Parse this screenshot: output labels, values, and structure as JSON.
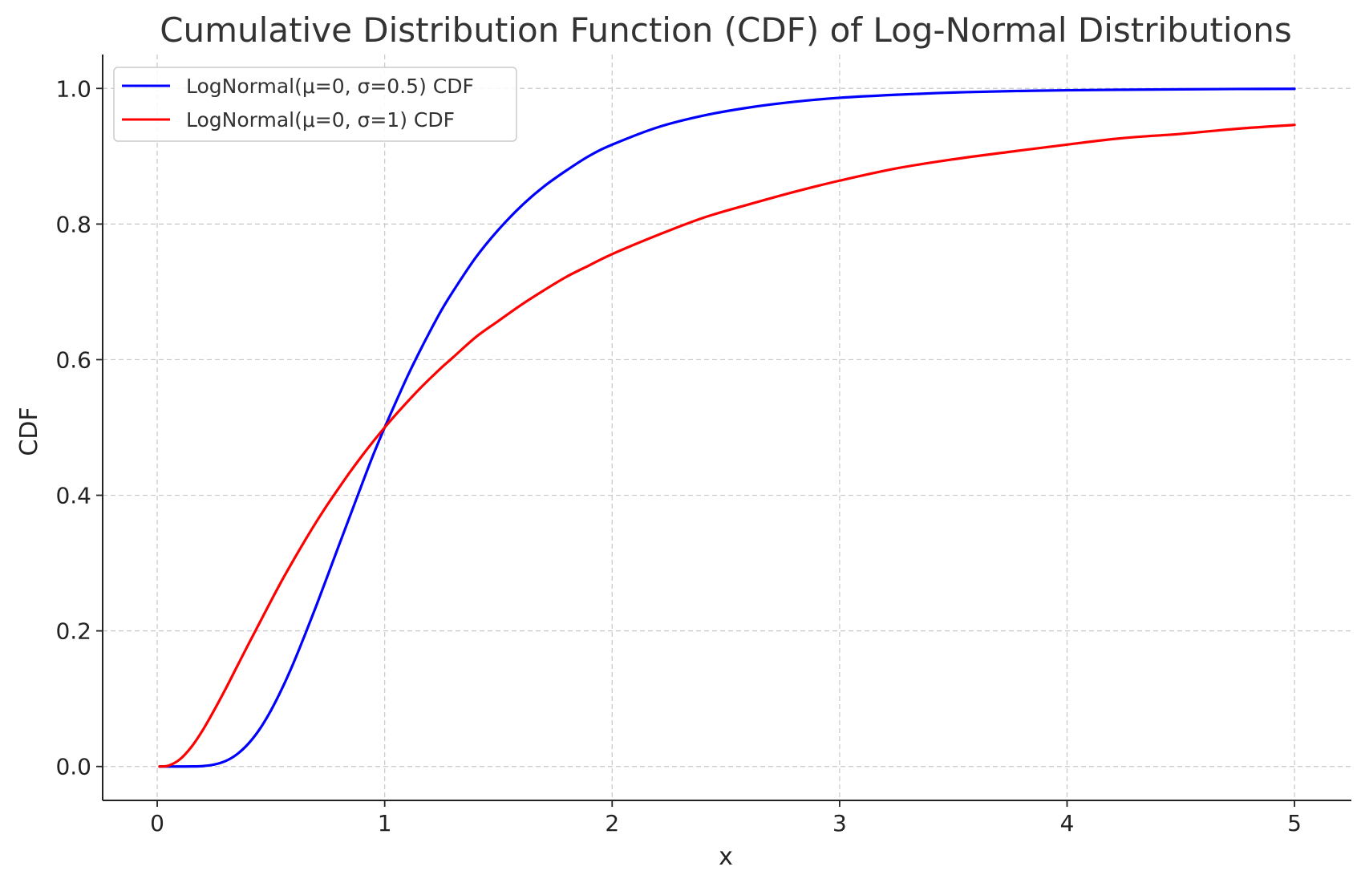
{
  "chart_data": {
    "type": "line",
    "title": "Cumulative Distribution Function (CDF) of Log-Normal Distributions",
    "xlabel": "x",
    "ylabel": "CDF",
    "xlim": [
      -0.24,
      5.25
    ],
    "ylim": [
      -0.05,
      1.05
    ],
    "xticks": [
      0,
      1,
      2,
      3,
      4,
      5
    ],
    "xtick_labels": [
      "0",
      "1",
      "2",
      "3",
      "4",
      "5"
    ],
    "yticks": [
      0.0,
      0.2,
      0.4,
      0.6,
      0.8,
      1.0
    ],
    "ytick_labels": [
      "0.0",
      "0.2",
      "0.4",
      "0.6",
      "0.8",
      "1.0"
    ],
    "grid": true,
    "legend_position": "top-left",
    "x": [
      0.01,
      0.05,
      0.1,
      0.15,
      0.2,
      0.25,
      0.3,
      0.35,
      0.4,
      0.45,
      0.5,
      0.55,
      0.6,
      0.65,
      0.7,
      0.75,
      0.8,
      0.85,
      0.9,
      0.95,
      1.0,
      1.05,
      1.1,
      1.15,
      1.2,
      1.25,
      1.3,
      1.4,
      1.5,
      1.6,
      1.7,
      1.8,
      1.9,
      2.0,
      2.2,
      2.4,
      2.6,
      2.8,
      3.0,
      3.25,
      3.5,
      3.75,
      4.0,
      4.25,
      4.5,
      4.75,
      5.0
    ],
    "series": [
      {
        "name": "LogNormal(μ=0, σ=0.5) CDF",
        "color": "#0000ff",
        "values": [
          0.0,
          0.0,
          0.0,
          0.0001,
          0.0006,
          0.0028,
          0.008,
          0.0179,
          0.0334,
          0.0549,
          0.0827,
          0.1159,
          0.1535,
          0.1948,
          0.2377,
          0.2823,
          0.3272,
          0.3717,
          0.4163,
          0.4599,
          0.5,
          0.5382,
          0.5754,
          0.6097,
          0.6423,
          0.6732,
          0.7005,
          0.7505,
          0.7916,
          0.8264,
          0.8554,
          0.8793,
          0.9007,
          0.9171,
          0.9427,
          0.9599,
          0.9718,
          0.9803,
          0.9862,
          0.9907,
          0.994,
          0.996,
          0.9973,
          0.9981,
          0.9987,
          0.9992,
          0.9994
        ]
      },
      {
        "name": "LogNormal(μ=0, σ=1) CDF",
        "color": "#ff0000",
        "values": [
          0.0,
          0.0013,
          0.0107,
          0.0288,
          0.0536,
          0.0829,
          0.1141,
          0.1469,
          0.1797,
          0.2119,
          0.2441,
          0.2755,
          0.305,
          0.3336,
          0.3611,
          0.387,
          0.4115,
          0.4354,
          0.458,
          0.4796,
          0.5,
          0.5194,
          0.5379,
          0.5557,
          0.5724,
          0.5884,
          0.6032,
          0.6331,
          0.6571,
          0.6808,
          0.7023,
          0.7224,
          0.7392,
          0.7557,
          0.7837,
          0.8092,
          0.8289,
          0.8474,
          0.864,
          0.8821,
          0.8955,
          0.9066,
          0.9172,
          0.9269,
          0.933,
          0.9406,
          0.9462
        ]
      }
    ]
  }
}
